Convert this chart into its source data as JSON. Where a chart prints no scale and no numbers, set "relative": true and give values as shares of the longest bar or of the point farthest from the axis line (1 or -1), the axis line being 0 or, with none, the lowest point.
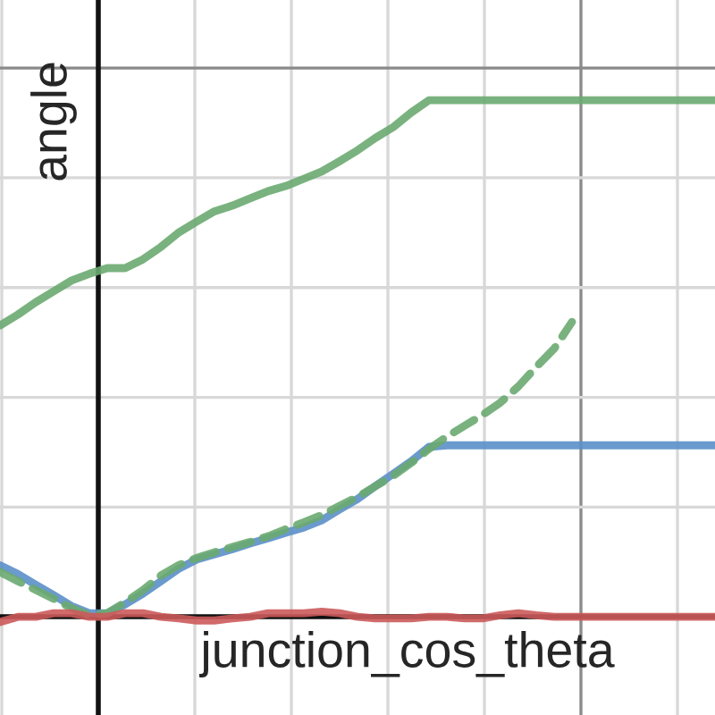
{
  "chart_data": {
    "type": "line",
    "relative": true,
    "xlabel": "junction_cos_theta",
    "ylabel": "angle",
    "grid": true,
    "tick_labels": false,
    "legend": false,
    "categories": [
      null,
      null,
      null,
      null,
      null,
      null,
      null,
      null,
      null,
      null,
      null,
      null,
      null,
      null,
      null,
      null,
      null,
      null,
      null,
      null,
      null,
      null,
      null,
      null,
      null,
      null,
      null,
      null,
      null,
      null,
      null,
      null,
      null,
      null,
      null,
      null,
      null,
      null,
      null,
      null,
      null
    ],
    "series": [
      {
        "color": "#6aaa70",
        "line_style": "solid",
        "values": [
          0.564,
          0.585,
          0.609,
          0.63,
          0.651,
          0.664,
          0.675,
          0.675,
          0.692,
          0.716,
          0.744,
          0.765,
          0.785,
          0.796,
          0.81,
          0.824,
          0.834,
          0.848,
          0.862,
          0.882,
          0.903,
          0.927,
          0.948,
          0.976,
          1,
          1,
          1,
          1,
          1,
          1,
          1,
          1,
          1,
          1,
          1,
          1,
          1,
          1,
          1,
          1,
          1
        ]
      },
      {
        "color": "#5b8fc9",
        "line_style": "solid",
        "values": [
          0.1,
          0.083,
          0.062,
          0.042,
          0.021,
          0.007,
          0.007,
          0.024,
          0.045,
          0.069,
          0.093,
          0.111,
          0.121,
          0.131,
          0.142,
          0.152,
          0.163,
          0.173,
          0.187,
          0.208,
          0.228,
          0.253,
          0.277,
          0.301,
          0.329,
          0.332,
          0.332,
          0.332,
          0.332,
          0.332,
          0.332,
          0.332,
          0.332,
          0.332,
          0.332,
          0.332,
          0.332,
          0.332,
          0.332,
          0.332,
          0.332
        ]
      },
      {
        "color": "#6aaa70",
        "line_style": "dashed",
        "values": [
          0.087,
          0.069,
          0.052,
          0.035,
          0.017,
          0.003,
          0.007,
          0.028,
          0.052,
          0.08,
          0.1,
          0.114,
          0.125,
          0.135,
          0.145,
          0.156,
          0.17,
          0.183,
          0.197,
          0.215,
          0.232,
          0.253,
          0.273,
          0.298,
          0.325,
          0.349,
          0.37,
          0.391,
          0.415,
          0.446,
          0.484,
          0.519,
          0.571,
          null,
          null,
          null,
          null,
          null,
          null,
          null,
          null
        ]
      },
      {
        "color": "#cc5a5a",
        "line_style": "solid",
        "values": [
          -0.01,
          0.0,
          0.0,
          0.007,
          0.007,
          0.0,
          0.0,
          0.007,
          0.007,
          0.0,
          -0.003,
          -0.007,
          -0.007,
          -0.003,
          0.0,
          0.007,
          0.007,
          0.007,
          0.01,
          0.007,
          0.0,
          -0.003,
          -0.003,
          -0.003,
          0.0,
          0.0,
          -0.003,
          -0.003,
          0.003,
          0.007,
          0.003,
          0.0,
          0.0,
          0.0,
          0.0,
          0.0,
          0.0,
          0.0,
          0.0,
          0.0,
          0.0
        ]
      }
    ]
  }
}
